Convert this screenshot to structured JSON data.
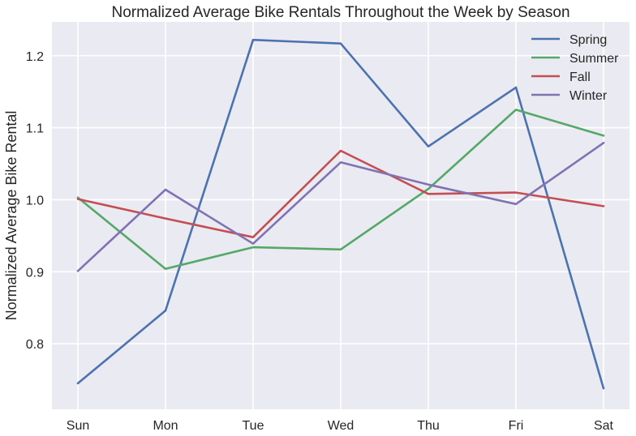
{
  "chart_data": {
    "type": "line",
    "title": "Normalized Average Bike Rentals Throughout the Week by Season",
    "xlabel": "",
    "ylabel": "Normalized Average Bike Rental",
    "categories": [
      "Sun",
      "Mon",
      "Tue",
      "Wed",
      "Thu",
      "Fri",
      "Sat"
    ],
    "ylim": [
      0.709,
      1.247
    ],
    "yticks": [
      0.8,
      0.9,
      1.0,
      1.1,
      1.2
    ],
    "ytick_labels": [
      "0.8",
      "0.9",
      "1.0",
      "1.1",
      "1.2"
    ],
    "grid": true,
    "legend_position": "top-right",
    "series": [
      {
        "name": "Spring",
        "color": "#4c72b0",
        "values": [
          0.745,
          0.846,
          1.222,
          1.217,
          1.074,
          1.156,
          0.738
        ]
      },
      {
        "name": "Summer",
        "color": "#55a868",
        "values": [
          1.003,
          0.904,
          0.934,
          0.931,
          1.015,
          1.125,
          1.089
        ]
      },
      {
        "name": "Fall",
        "color": "#c44e52",
        "values": [
          1.001,
          0.974,
          0.948,
          1.068,
          1.008,
          1.01,
          0.991
        ]
      },
      {
        "name": "Winter",
        "color": "#8172b2",
        "values": [
          0.901,
          1.014,
          0.939,
          1.052,
          1.021,
          0.994,
          1.079
        ]
      }
    ]
  }
}
